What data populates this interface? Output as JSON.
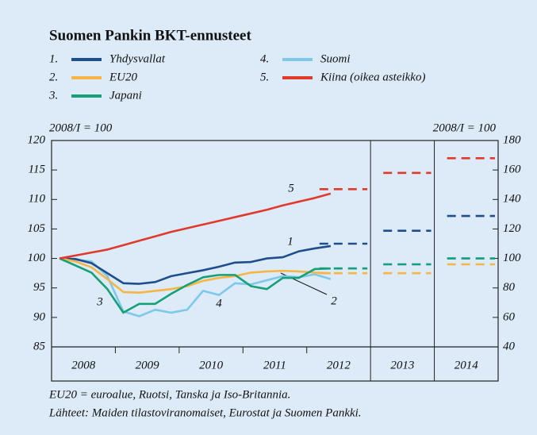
{
  "chart_data": {
    "type": "line",
    "title": "Suomen Pankin BKT-ennusteet",
    "y_label": "2008/I = 100",
    "y2_label": "2008/I = 100",
    "xlim": [
      2008,
      2015
    ],
    "ylim": [
      85,
      120
    ],
    "yticks": [
      85,
      90,
      95,
      100,
      105,
      110,
      115,
      120
    ],
    "y2lim": [
      40,
      180
    ],
    "y2ticks": [
      40,
      60,
      80,
      100,
      120,
      140,
      160,
      180
    ],
    "categories": [
      "2008",
      "2009",
      "2010",
      "2011",
      "2012",
      "2013",
      "2014"
    ],
    "x": [
      2008.125,
      2008.375,
      2008.625,
      2008.875,
      2009.125,
      2009.375,
      2009.625,
      2009.875,
      2010.125,
      2010.375,
      2010.625,
      2010.875,
      2011.125,
      2011.375,
      2011.625,
      2011.875,
      2012.125,
      2012.375
    ],
    "forecast_x": [
      2012,
      2013,
      2014
    ],
    "series": [
      {
        "number": "4.",
        "name": "Suomi",
        "label": "4",
        "color": "#7ec8ea",
        "values": [
          100,
          99.8,
          99.5,
          97.0,
          91.0,
          90.2,
          91.3,
          90.8,
          91.3,
          94.5,
          93.8,
          95.8,
          95.6,
          96.3,
          97.0,
          96.8,
          97.3,
          96.5
        ],
        "forecast": [
          98.3,
          99.0,
          100.0
        ]
      },
      {
        "number": "1.",
        "name": "Yhdysvallat",
        "label": "1",
        "color": "#1f4e8c",
        "values": [
          100,
          99.9,
          99.2,
          97.5,
          95.8,
          95.7,
          96.0,
          97.0,
          97.5,
          98.0,
          98.6,
          99.3,
          99.4,
          100.0,
          100.2,
          101.2,
          101.7,
          102.1
        ],
        "forecast": [
          102.5,
          104.7,
          107.2
        ]
      },
      {
        "number": "2.",
        "name": "EU20",
        "label": "2",
        "color": "#f7b548",
        "values": [
          100,
          99.5,
          98.5,
          96.5,
          94.3,
          94.2,
          94.5,
          94.8,
          95.3,
          96.2,
          96.7,
          97.0,
          97.6,
          97.8,
          97.9,
          97.8,
          97.6,
          97.5
        ],
        "forecast": [
          97.5,
          97.5,
          99.0
        ]
      },
      {
        "number": "3.",
        "name": "Japani",
        "label": "3",
        "color": "#17a077",
        "values": [
          100,
          98.8,
          97.6,
          94.8,
          90.8,
          92.3,
          92.3,
          94.0,
          95.5,
          96.8,
          97.2,
          97.2,
          95.3,
          94.8,
          96.7,
          96.7,
          98.2,
          98.3
        ],
        "forecast": [
          98.3,
          99.0,
          100.0
        ]
      },
      {
        "number": "5.",
        "name": "Kiina (oikea asteikko)",
        "label": "5",
        "color": "#e03a2c",
        "axis": "y2",
        "values": [
          100,
          102,
          104,
          106,
          109,
          112,
          115,
          118,
          120.5,
          123,
          125.5,
          128,
          130.5,
          133,
          136,
          138.5,
          141,
          144
        ],
        "forecast": [
          147,
          158,
          168
        ]
      }
    ],
    "note": "EU20 = euroalue, Ruotsi, Tanska ja Iso-Britannia.",
    "source": "Lähteet: Maiden tilastoviranomaiset, Eurostat ja Suomen Pankki."
  }
}
